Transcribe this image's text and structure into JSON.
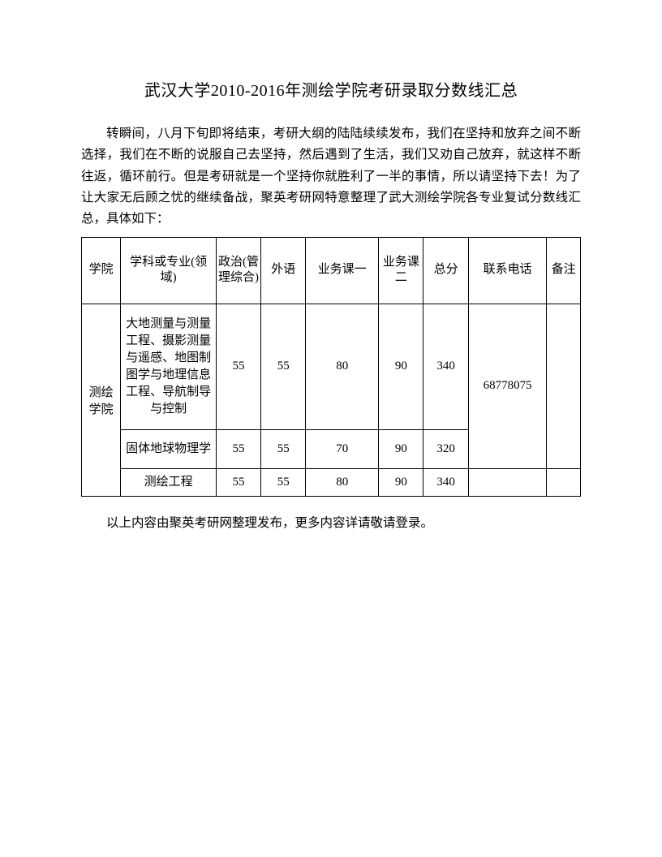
{
  "title": "武汉大学2010-2016年测绘学院考研录取分数线汇总",
  "paragraph": "转瞬间，八月下旬即将结束，考研大纲的陆陆续续发布，我们在坚持和放弃之间不断选择，我们在不断的说服自己去坚持，然后遇到了生活，我们又劝自己放弃，就这样不断往返，循环前行。但是考研就是一个坚持你就胜利了一半的事情，所以请坚持下去！为了让大家无后顾之忧的继续备战，聚英考研网特意整理了武大测绘学院各专业复试分数线汇总，具体如下：",
  "table": {
    "headers": {
      "college": "学院",
      "major": "学科或专业(领域)",
      "politics": "政治(管理综合)",
      "foreign": "外语",
      "course1": "业务课一",
      "course2": "业务课二",
      "total": "总分",
      "phone": "联系电话",
      "note": "备注"
    },
    "college_name": "测绘学院",
    "phone_value": "68778075",
    "rows": [
      {
        "major": "大地测量与测量工程、摄影测量与遥感、地图制图学与地理信息工程、导航制导与控制",
        "politics": "55",
        "foreign": "55",
        "course1": "80",
        "course2": "90",
        "total": "340"
      },
      {
        "major": "固体地球物理学",
        "politics": "55",
        "foreign": "55",
        "course1": "70",
        "course2": "90",
        "total": "320"
      },
      {
        "major": "测绘工程",
        "politics": "55",
        "foreign": "55",
        "course1": "80",
        "course2": "90",
        "total": "340"
      }
    ]
  },
  "footer": "以上内容由聚英考研网整理发布，更多内容详请敬请登录。"
}
